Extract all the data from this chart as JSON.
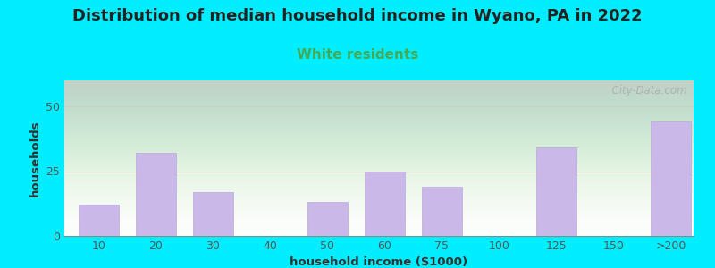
{
  "title": "Distribution of median household income in Wyano, PA in 2022",
  "subtitle": "White residents",
  "xlabel": "household income ($1000)",
  "ylabel": "households",
  "title_fontsize": 13,
  "subtitle_fontsize": 11,
  "label_fontsize": 9.5,
  "tick_fontsize": 9,
  "categories": [
    "10",
    "20",
    "30",
    "40",
    "50",
    "60",
    "75",
    "100",
    "125",
    "150",
    ">200"
  ],
  "values": [
    12,
    32,
    17,
    0,
    13,
    25,
    19,
    0,
    34,
    0,
    44
  ],
  "bar_color": "#c9b8e8",
  "bar_edge_color": "#bba8d8",
  "ylim": [
    0,
    60
  ],
  "yticks": [
    0,
    25,
    50
  ],
  "bg_outer": "#00eeff",
  "watermark": "  City-Data.com",
  "subtitle_color": "#44aa55",
  "title_color": "#222222",
  "tick_color": "#555555",
  "label_color": "#333333"
}
